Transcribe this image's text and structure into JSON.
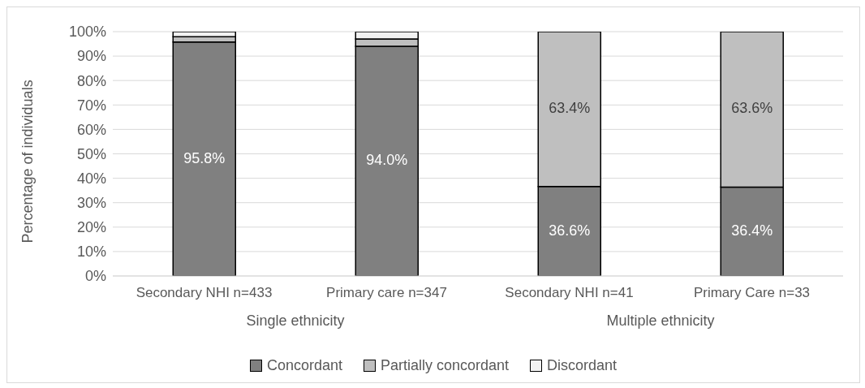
{
  "chart_data": {
    "type": "bar",
    "stacked": true,
    "ylabel": "Percentage of individuals",
    "categories": [
      "Secondary NHI n=433",
      "Primary care n=347",
      "Secondary NHI n=41",
      "Primary Care n=33"
    ],
    "series": [
      {
        "name": "Concordant",
        "color": "#808080",
        "values": [
          95.8,
          94.0,
          36.6,
          36.4
        ],
        "value_labels": [
          "95.8%",
          "94.0%",
          "36.6%",
          "36.4%"
        ]
      },
      {
        "name": "Partially concordant",
        "color": "#bfbfbf",
        "values": [
          2.1,
          3.0,
          63.4,
          63.6
        ],
        "value_labels": [
          null,
          null,
          "63.4%",
          "63.6%"
        ]
      },
      {
        "name": "Discordant",
        "color": "#f2f2f2",
        "values": [
          2.1,
          3.0,
          0,
          0
        ]
      }
    ],
    "ylim": [
      0,
      100
    ],
    "yticks": [
      {
        "value": 0,
        "label": "0%"
      },
      {
        "value": 10,
        "label": "10%"
      },
      {
        "value": 20,
        "label": "20%"
      },
      {
        "value": 30,
        "label": "30%"
      },
      {
        "value": 40,
        "label": "40%"
      },
      {
        "value": 50,
        "label": "50%"
      },
      {
        "value": 60,
        "label": "60%"
      },
      {
        "value": 70,
        "label": "70%"
      },
      {
        "value": 80,
        "label": "80%"
      },
      {
        "value": 90,
        "label": "90%"
      },
      {
        "value": 100,
        "label": "100%"
      }
    ],
    "grid": "y",
    "legend": "bottom",
    "annotations": [
      "Single ethnicity",
      "Multiple ethnicity"
    ]
  }
}
